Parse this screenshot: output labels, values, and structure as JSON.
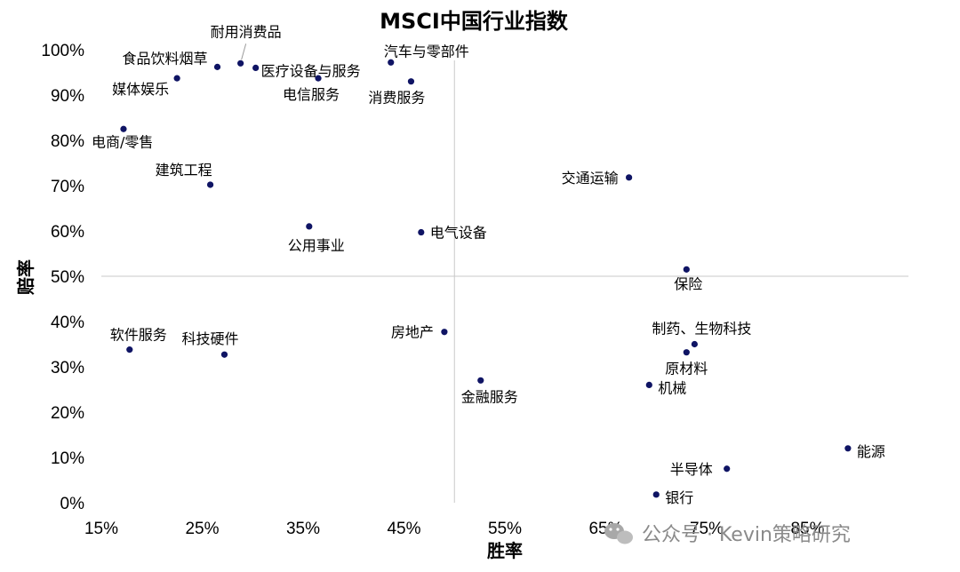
{
  "chart_data": {
    "type": "scatter",
    "title": "MSCI中国行业指数",
    "xlabel": "胜率",
    "ylabel": "赔率",
    "xlim": [
      0.15,
      0.95
    ],
    "ylim": [
      0,
      1
    ],
    "xticks": [
      0.15,
      0.25,
      0.35,
      0.45,
      0.55,
      0.65,
      0.75,
      0.85
    ],
    "xtick_labels": [
      "15%",
      "25%",
      "35%",
      "45%",
      "55%",
      "65%",
      "75%",
      "85%"
    ],
    "yticks": [
      0,
      0.1,
      0.2,
      0.3,
      0.4,
      0.5,
      0.6,
      0.7,
      0.8,
      0.9,
      1.0
    ],
    "ytick_labels": [
      "0%",
      "10%",
      "20%",
      "30%",
      "40%",
      "50%",
      "60%",
      "70%",
      "80%",
      "90%",
      "100%"
    ],
    "crosshair": {
      "x": 0.5,
      "y": 0.5
    },
    "marker_color": "#0f1464",
    "points": [
      {
        "label": "食品饮料烟草",
        "x": 0.265,
        "y": 0.962
      },
      {
        "label": "耐用消费品",
        "x": 0.288,
        "y": 0.97
      },
      {
        "label": "医疗设备与服务",
        "x": 0.303,
        "y": 0.96
      },
      {
        "label": "媒体娱乐",
        "x": 0.225,
        "y": 0.937
      },
      {
        "label": "电信服务",
        "x": 0.365,
        "y": 0.937
      },
      {
        "label": "汽车与零部件",
        "x": 0.437,
        "y": 0.972
      },
      {
        "label": "消费服务",
        "x": 0.457,
        "y": 0.93
      },
      {
        "label": "电商/零售",
        "x": 0.172,
        "y": 0.825
      },
      {
        "label": "建筑工程",
        "x": 0.258,
        "y": 0.702
      },
      {
        "label": "交通运输",
        "x": 0.673,
        "y": 0.718
      },
      {
        "label": "公用事业",
        "x": 0.356,
        "y": 0.61
      },
      {
        "label": "电气设备",
        "x": 0.467,
        "y": 0.597
      },
      {
        "label": "保险",
        "x": 0.73,
        "y": 0.515
      },
      {
        "label": "房地产",
        "x": 0.49,
        "y": 0.377
      },
      {
        "label": "制药、生物科技",
        "x": 0.738,
        "y": 0.35
      },
      {
        "label": "原材料",
        "x": 0.73,
        "y": 0.332
      },
      {
        "label": "软件服务",
        "x": 0.178,
        "y": 0.338
      },
      {
        "label": "科技硬件",
        "x": 0.272,
        "y": 0.327
      },
      {
        "label": "金融服务",
        "x": 0.526,
        "y": 0.27
      },
      {
        "label": "机械",
        "x": 0.693,
        "y": 0.26
      },
      {
        "label": "能源",
        "x": 0.89,
        "y": 0.12
      },
      {
        "label": "半导体",
        "x": 0.77,
        "y": 0.075
      },
      {
        "label": "银行",
        "x": 0.7,
        "y": 0.018
      }
    ]
  },
  "watermark": {
    "text": "公众号 · Kevin策略研究",
    "icon": "wechat-icon"
  }
}
